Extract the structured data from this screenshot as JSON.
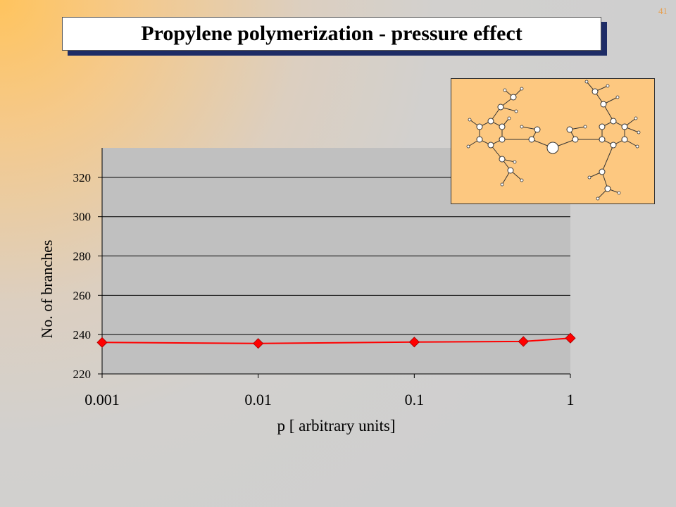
{
  "slide": {
    "title": "Propylene polymerization - pressure effect",
    "number": "41"
  },
  "colors": {
    "plot_area": "#c0c0c0",
    "series_line": "#ff0000",
    "marker": "#ff0000",
    "title_shadow": "#1e2c66",
    "molecule_background": "#fdc880"
  },
  "icons": {
    "molecule": "molecular-structure-image"
  },
  "chart_data": {
    "type": "line",
    "title": "",
    "xlabel": "p [ arbitrary units]",
    "ylabel": "No. of branches",
    "xscale": "log",
    "xlim": [
      0.001,
      1
    ],
    "ylim": [
      220,
      335
    ],
    "x_ticks": [
      0.001,
      0.01,
      0.1,
      1
    ],
    "x_tick_labels": [
      "0.001",
      "0.01",
      "0.1",
      "1"
    ],
    "y_ticks": [
      220,
      240,
      260,
      280,
      300,
      320
    ],
    "y_tick_labels": [
      "220",
      "240",
      "260",
      "280",
      "300",
      "320"
    ],
    "grid": "horizontal major gridlines",
    "legend": "none",
    "series": [
      {
        "x": [
          0.001,
          0.01,
          0.1,
          0.5,
          1
        ],
        "values": [
          236,
          235.5,
          236.2,
          236.5,
          238.2
        ]
      }
    ]
  }
}
